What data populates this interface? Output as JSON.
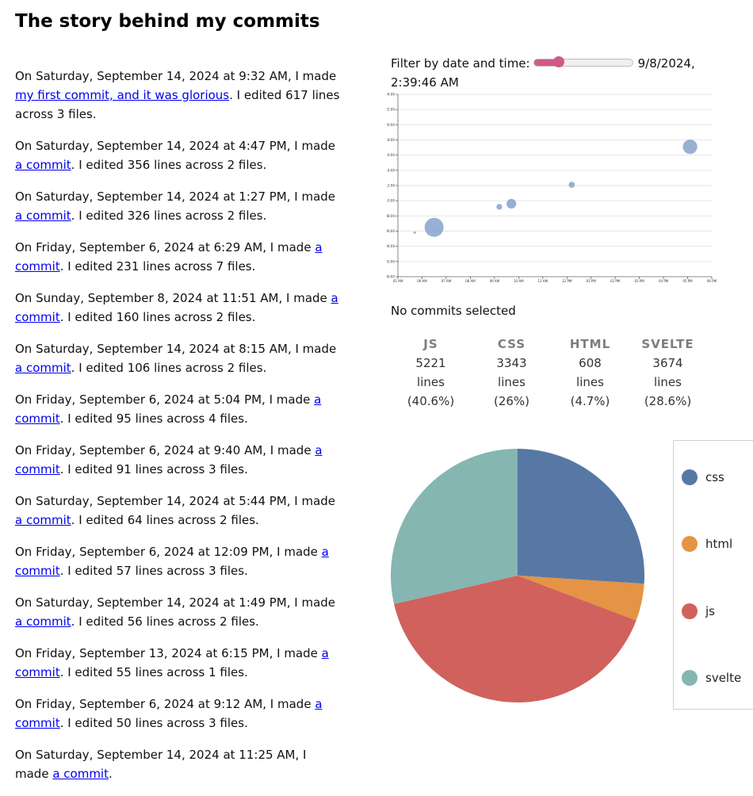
{
  "title": "The story behind my commits",
  "commits": [
    {
      "prefix": "On Saturday, September 14, 2024 at 9:32 AM, I made ",
      "link": "my first commit, and it was glorious",
      "suffix": ". I edited 617 lines across 3 files."
    },
    {
      "prefix": "On Saturday, September 14, 2024 at 4:47 PM, I made ",
      "link": "a commit",
      "suffix": ". I edited 356 lines across 2 files."
    },
    {
      "prefix": "On Saturday, September 14, 2024 at 1:27 PM, I made ",
      "link": "a commit",
      "suffix": ". I edited 326 lines across 2 files."
    },
    {
      "prefix": "On Friday, September 6, 2024 at 6:29 AM, I made ",
      "link": "a commit",
      "suffix": ". I edited 231 lines across 7 files."
    },
    {
      "prefix": "On Sunday, September 8, 2024 at 11:51 AM, I made ",
      "link": "a commit",
      "suffix": ". I edited 160 lines across 2 files."
    },
    {
      "prefix": "On Saturday, September 14, 2024 at 8:15 AM, I made ",
      "link": "a commit",
      "suffix": ". I edited 106 lines across 2 files."
    },
    {
      "prefix": "On Friday, September 6, 2024 at 5:04 PM, I made ",
      "link": "a commit",
      "suffix": ". I edited 95 lines across 4 files."
    },
    {
      "prefix": "On Friday, September 6, 2024 at 9:40 AM, I made ",
      "link": "a commit",
      "suffix": ". I edited 91 lines across 3 files."
    },
    {
      "prefix": "On Saturday, September 14, 2024 at 5:44 PM, I made ",
      "link": "a commit",
      "suffix": ". I edited 64 lines across 2 files."
    },
    {
      "prefix": "On Friday, September 6, 2024 at 12:09 PM, I made ",
      "link": "a commit",
      "suffix": ". I edited 57 lines across 3 files."
    },
    {
      "prefix": "On Saturday, September 14, 2024 at 1:49 PM, I made ",
      "link": "a commit",
      "suffix": ". I edited 56 lines across 2 files."
    },
    {
      "prefix": "On Friday, September 13, 2024 at 6:15 PM, I made ",
      "link": "a commit",
      "suffix": ". I edited 55 lines across 1 files."
    },
    {
      "prefix": "On Friday, September 6, 2024 at 9:12 AM, I made ",
      "link": "a commit",
      "suffix": ". I edited 50 lines across 3 files."
    },
    {
      "prefix": "On Saturday, September 14, 2024 at 11:25 AM, I made ",
      "link": "a commit",
      "suffix": "."
    }
  ],
  "filter": {
    "label": "Filter by date and time:",
    "value": "9/8/2024, 2:39:46 AM",
    "slider_fraction": 0.25,
    "fill_color": "#d1598a"
  },
  "no_commits_label": "No commits selected",
  "stats": [
    {
      "lang": "JS",
      "count": "5221",
      "unit": "lines",
      "pct": "(40.6%)"
    },
    {
      "lang": "CSS",
      "count": "3343",
      "unit": "lines",
      "pct": "(26%)"
    },
    {
      "lang": "HTML",
      "count": "608",
      "unit": "lines",
      "pct": "(4.7%)"
    },
    {
      "lang": "SVELTE",
      "count": "3674",
      "unit": "lines",
      "pct": "(28.6%)"
    }
  ],
  "chart_data": [
    {
      "type": "scatter",
      "title": "",
      "xlabel": "",
      "ylabel": "",
      "x_ticks": [
        "05 AM",
        "06 AM",
        "07 AM",
        "08 AM",
        "09 AM",
        "10 AM",
        "11 AM",
        "12 PM",
        "01 PM",
        "02 PM",
        "03 PM",
        "04 PM",
        "05 PM",
        "06 PM"
      ],
      "y_ticks": [
        "00:00",
        "02:00",
        "04:00",
        "06:00",
        "08:00",
        "10:00",
        "12:00",
        "14:00",
        "16:00",
        "18:00",
        "20:00",
        "22:00",
        "24:00"
      ],
      "ylim": [
        0,
        24
      ],
      "grid": true,
      "color": "#7d9ec9",
      "points": [
        {
          "x": 5.7,
          "y": 5.8,
          "lines": 5
        },
        {
          "x": 6.5,
          "y": 6.5,
          "lines": 617
        },
        {
          "x": 9.2,
          "y": 9.2,
          "lines": 57
        },
        {
          "x": 9.7,
          "y": 9.6,
          "lines": 160
        },
        {
          "x": 12.2,
          "y": 12.1,
          "lines": 64
        },
        {
          "x": 17.1,
          "y": 17.1,
          "lines": 356
        }
      ]
    },
    {
      "type": "pie",
      "title": "",
      "legend_position": "right",
      "slices": [
        {
          "label": "css",
          "value": 3343,
          "color": "#5778a4"
        },
        {
          "label": "html",
          "value": 608,
          "color": "#e49444"
        },
        {
          "label": "js",
          "value": 5221,
          "color": "#d1615d"
        },
        {
          "label": "svelte",
          "value": 3674,
          "color": "#85b6b2"
        }
      ]
    }
  ]
}
